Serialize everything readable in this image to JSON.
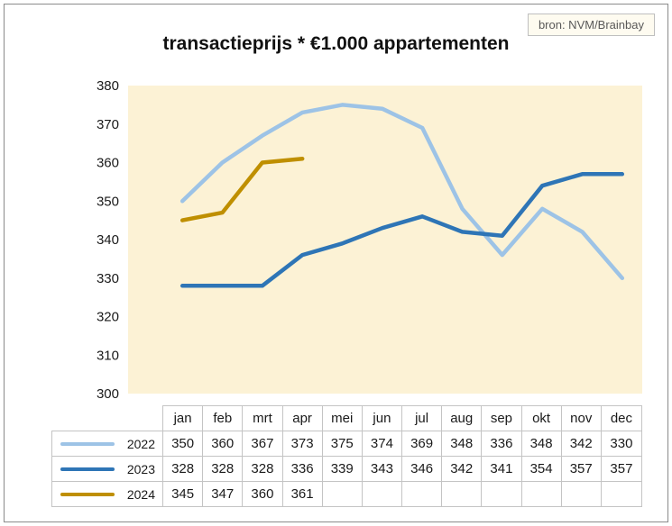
{
  "header": {
    "title": "transactieprijs * €1.000 appartementen",
    "source_label": "bron: NVM/Brainbay"
  },
  "chart_data": {
    "type": "line",
    "title": "transactieprijs * €1.000 appartementen",
    "source": "bron: NVM/Brainbay",
    "categories": [
      "jan",
      "feb",
      "mrt",
      "apr",
      "mei",
      "jun",
      "jul",
      "aug",
      "sep",
      "okt",
      "nov",
      "dec"
    ],
    "series": [
      {
        "name": "2022",
        "color": "#9DC3E6",
        "values": [
          350,
          360,
          367,
          373,
          375,
          374,
          369,
          348,
          336,
          348,
          342,
          330
        ]
      },
      {
        "name": "2023",
        "color": "#2E75B6",
        "values": [
          328,
          328,
          328,
          336,
          339,
          343,
          346,
          342,
          341,
          354,
          357,
          357
        ]
      },
      {
        "name": "2024",
        "color": "#BF8F00",
        "values": [
          345,
          347,
          360,
          361
        ]
      }
    ],
    "ylim": [
      300,
      380
    ],
    "ytick_step": 10,
    "plot_bg": "#FCF2D5",
    "grid": false,
    "legend_position": "table-left",
    "xlabel": "",
    "ylabel": ""
  }
}
